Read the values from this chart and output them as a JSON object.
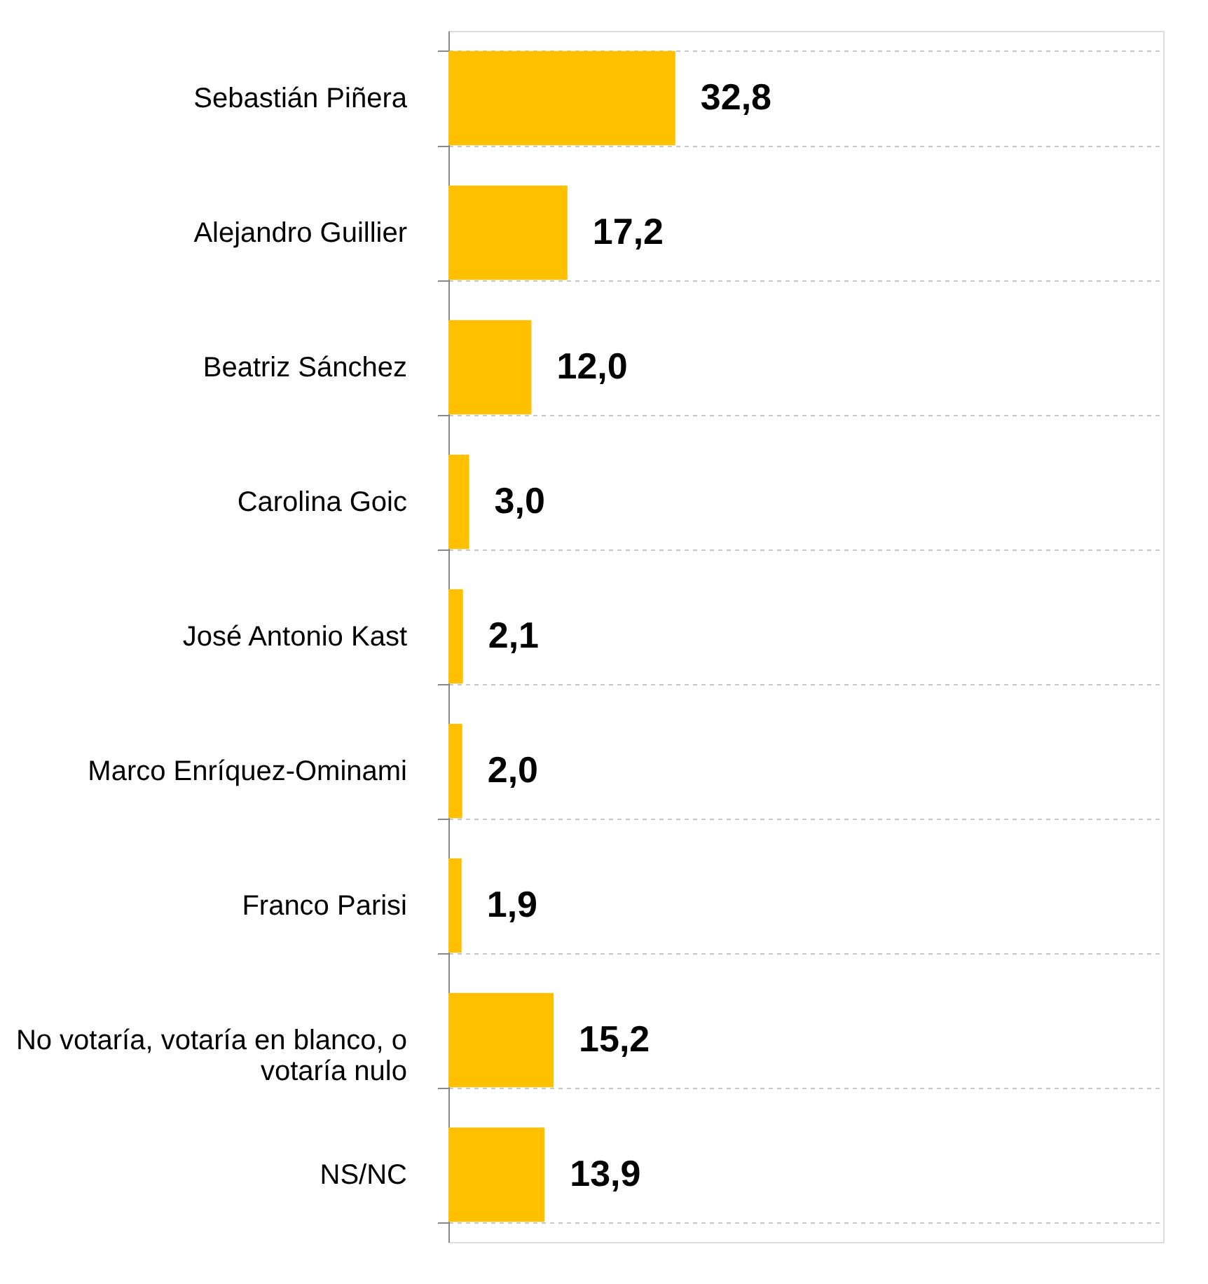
{
  "chart_data": {
    "type": "bar",
    "orientation": "horizontal",
    "grid": "y",
    "categories": [
      "Sebastián Piñera",
      "Alejandro Guillier",
      "Beatriz Sánchez",
      "Carolina Goic",
      "José Antonio Kast",
      "Marco Enríquez-Ominami",
      "Franco Parisi",
      "No votaría, votaría en blanco, o\nvotaría nulo",
      "NS/NC"
    ],
    "value_labels": [
      "32,8",
      "17,2",
      "12,0",
      "3,0",
      "2,1",
      "2,0",
      "1,9",
      "15,2",
      "13,9"
    ],
    "values": [
      32.8,
      17.2,
      12.0,
      3.0,
      2.1,
      2.0,
      1.9,
      15.2,
      13.9
    ],
    "color": "#ffc000"
  }
}
